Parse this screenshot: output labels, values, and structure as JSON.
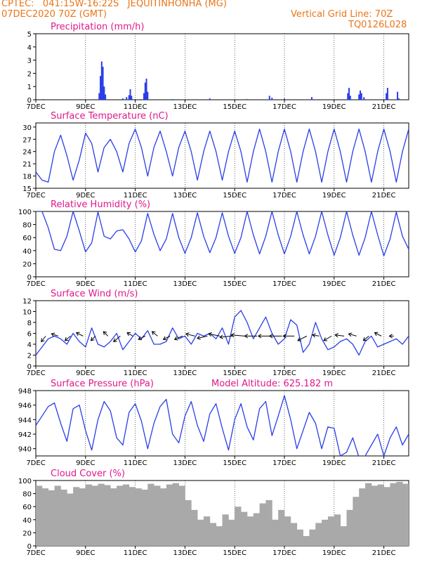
{
  "header": {
    "line1": "CPTEC:   041:15W-16:22S   JEQUITINHONHA (MG)",
    "line2": "07DEC2020 70Z (GMT)",
    "right1": "Vertical Grid Line: 70Z",
    "right2": "TQ0126L028"
  },
  "colors": {
    "header": "#e8761a",
    "title": "#e0188c",
    "series": "#2a3ee8",
    "cloud": "#a9a9a9",
    "wind_arrow": "#000000"
  },
  "x_axis": {
    "ticks": [
      "7DEC",
      "9DEC",
      "11DEC",
      "13DEC",
      "15DEC",
      "17DEC",
      "19DEC",
      "21DEC"
    ],
    "tick_days": [
      0,
      2,
      4,
      6,
      8,
      10,
      12,
      14
    ],
    "range_days": [
      0,
      15
    ]
  },
  "chart_data": [
    {
      "id": "precip",
      "type": "bar",
      "title": "Precipitation (mm/h)",
      "ylim": [
        0,
        5
      ],
      "yticks": [
        0,
        1,
        2,
        3,
        4,
        5
      ],
      "x_days": [
        0.3,
        2.55,
        2.6,
        2.65,
        2.7,
        2.75,
        2.8,
        3.5,
        3.65,
        3.75,
        3.8,
        3.85,
        4.35,
        4.4,
        4.45,
        4.5,
        5.5,
        7.0,
        8.5,
        9.4,
        9.5,
        10.0,
        11.1,
        12.55,
        12.6,
        12.65,
        13.0,
        13.05,
        13.1,
        13.2,
        14.1,
        14.15,
        14.55,
        14.6
      ],
      "values": [
        0.05,
        0.5,
        1.8,
        2.9,
        2.5,
        1.0,
        0.4,
        0.1,
        0.2,
        0.35,
        0.8,
        0.3,
        0.5,
        1.3,
        1.6,
        0.6,
        0.05,
        0.1,
        0.05,
        0.3,
        0.15,
        0.1,
        0.2,
        0.5,
        0.9,
        0.3,
        0.4,
        0.7,
        0.5,
        0.2,
        0.5,
        0.9,
        0.6,
        0.1
      ]
    },
    {
      "id": "temp",
      "type": "line",
      "title": "Surface Temperature (nC)",
      "ylim": [
        15,
        31
      ],
      "yticks": [
        15,
        18,
        21,
        24,
        27,
        30
      ],
      "x_days": [
        0,
        0.25,
        0.5,
        0.75,
        1,
        1.25,
        1.5,
        1.75,
        2,
        2.25,
        2.5,
        2.75,
        3,
        3.25,
        3.5,
        3.75,
        4,
        4.25,
        4.5,
        4.75,
        5,
        5.25,
        5.5,
        5.75,
        6,
        6.25,
        6.5,
        6.75,
        7,
        7.25,
        7.5,
        7.75,
        8,
        8.25,
        8.5,
        8.75,
        9,
        9.25,
        9.5,
        9.75,
        10,
        10.25,
        10.5,
        10.75,
        11,
        11.25,
        11.5,
        11.75,
        12,
        12.25,
        12.5,
        12.75,
        13,
        13.25,
        13.5,
        13.75,
        14,
        14.25,
        14.5,
        14.75,
        15
      ],
      "values": [
        19,
        17,
        16.5,
        24,
        28,
        23,
        17,
        22,
        28.5,
        26,
        19,
        25,
        27,
        24,
        19,
        26,
        29.5,
        25,
        18,
        25,
        29,
        24,
        18,
        25,
        29,
        24,
        17,
        24,
        29,
        24,
        17,
        24,
        29,
        24,
        16.5,
        24,
        29.5,
        24,
        16.5,
        24,
        29.5,
        24,
        16.5,
        24,
        29.5,
        24,
        16.5,
        24,
        29.5,
        24,
        16.5,
        24,
        29.5,
        24,
        16.5,
        24,
        29.5,
        24,
        16.5,
        24,
        29.5
      ]
    },
    {
      "id": "rh",
      "type": "line",
      "title": "Relative Humidity (%)",
      "ylim": [
        0,
        100
      ],
      "yticks": [
        0,
        20,
        40,
        60,
        80,
        100
      ],
      "x_days": [
        0,
        0.25,
        0.5,
        0.75,
        1,
        1.25,
        1.5,
        1.75,
        2,
        2.25,
        2.5,
        2.75,
        3,
        3.25,
        3.5,
        3.75,
        4,
        4.25,
        4.5,
        4.75,
        5,
        5.25,
        5.5,
        5.75,
        6,
        6.25,
        6.5,
        6.75,
        7,
        7.25,
        7.5,
        7.75,
        8,
        8.25,
        8.5,
        8.75,
        9,
        9.25,
        9.5,
        9.75,
        10,
        10.25,
        10.5,
        10.75,
        11,
        11.25,
        11.5,
        11.75,
        12,
        12.25,
        12.5,
        12.75,
        13,
        13.25,
        13.5,
        13.75,
        14,
        14.25,
        14.5,
        14.75,
        15
      ],
      "values": [
        100,
        100,
        75,
        42,
        40,
        62,
        100,
        70,
        38,
        52,
        99,
        62,
        58,
        70,
        72,
        58,
        38,
        55,
        97,
        65,
        40,
        58,
        97,
        60,
        36,
        60,
        98,
        62,
        37,
        60,
        98,
        62,
        36,
        60,
        100,
        64,
        35,
        62,
        100,
        64,
        35,
        62,
        100,
        64,
        35,
        62,
        100,
        64,
        33,
        60,
        100,
        64,
        33,
        60,
        100,
        64,
        32,
        58,
        99,
        62,
        42
      ]
    },
    {
      "id": "wind",
      "type": "line",
      "title": "Surface Wind (m/s)",
      "ylim": [
        0,
        12
      ],
      "yticks": [
        0,
        2,
        4,
        6,
        8,
        10,
        12
      ],
      "x_days": [
        0,
        0.25,
        0.5,
        0.75,
        1,
        1.25,
        1.5,
        1.75,
        2,
        2.25,
        2.5,
        2.75,
        3,
        3.25,
        3.5,
        3.75,
        4,
        4.25,
        4.5,
        4.75,
        5,
        5.25,
        5.5,
        5.75,
        6,
        6.25,
        6.5,
        6.75,
        7,
        7.25,
        7.5,
        7.75,
        8,
        8.25,
        8.5,
        8.75,
        9,
        9.25,
        9.5,
        9.75,
        10,
        10.25,
        10.5,
        10.75,
        11,
        11.25,
        11.5,
        11.75,
        12,
        12.25,
        12.5,
        12.75,
        13,
        13.25,
        13.5,
        13.75,
        14,
        14.25,
        14.5,
        14.75,
        15
      ],
      "values": [
        2,
        3.5,
        5,
        5.5,
        5,
        4,
        6,
        4.5,
        3.5,
        7,
        4,
        3.5,
        4.5,
        6,
        3,
        4.5,
        6,
        5,
        6.5,
        4,
        4,
        4.5,
        7,
        5,
        5.5,
        4,
        6,
        5.5,
        6,
        5,
        7,
        4,
        9,
        10.2,
        8,
        5,
        7,
        9,
        6,
        4,
        5,
        8.5,
        7.5,
        2.5,
        4,
        8,
        5,
        3,
        3.5,
        4.5,
        5,
        4,
        2,
        4.5,
        5.5,
        3.5,
        4,
        4.5,
        5,
        4,
        5.5
      ]
    },
    {
      "id": "pressure",
      "type": "line",
      "title": "Surface Pressure (hPa)",
      "annotation": "Model Altitude: 625.182 m",
      "ylim": [
        939,
        948
      ],
      "yticks": [
        940,
        942,
        944,
        946,
        948
      ],
      "x_days": [
        0,
        0.25,
        0.5,
        0.75,
        1,
        1.25,
        1.5,
        1.75,
        2,
        2.25,
        2.5,
        2.75,
        3,
        3.25,
        3.5,
        3.75,
        4,
        4.25,
        4.5,
        4.75,
        5,
        5.25,
        5.5,
        5.75,
        6,
        6.25,
        6.5,
        6.75,
        7,
        7.25,
        7.5,
        7.75,
        8,
        8.25,
        8.5,
        8.75,
        9,
        9.25,
        9.5,
        9.75,
        10,
        10.25,
        10.5,
        10.75,
        11,
        11.25,
        11.5,
        11.75,
        12,
        12.25,
        12.5,
        12.75,
        13,
        13.25,
        13.5,
        13.75,
        14,
        14.25,
        14.5,
        14.75,
        15
      ],
      "values": [
        943.2,
        944.5,
        945.8,
        946.3,
        943.5,
        941.0,
        945.5,
        946.0,
        942.5,
        939.8,
        944.0,
        946.5,
        945.2,
        941.5,
        940.5,
        945.0,
        946.2,
        943.8,
        940.0,
        943.5,
        945.8,
        946.8,
        942.0,
        940.8,
        944.5,
        946.5,
        943.2,
        941.0,
        944.8,
        946.2,
        942.8,
        939.8,
        944.0,
        946.2,
        943.0,
        941.2,
        945.5,
        946.5,
        941.8,
        944.5,
        947.3,
        944.0,
        940.0,
        942.5,
        945.0,
        943.5,
        940.0,
        943.0,
        942.8,
        939.0,
        939.5,
        941.5,
        938.8,
        939.0,
        940.5,
        942.0,
        939.0,
        941.5,
        943.0,
        940.5,
        942.0
      ]
    },
    {
      "id": "cloud",
      "type": "bar",
      "title": "Cloud Cover (%)",
      "ylim": [
        0,
        100
      ],
      "yticks": [
        0,
        20,
        40,
        60,
        80,
        100
      ],
      "x_days": [
        0,
        0.25,
        0.5,
        0.75,
        1,
        1.25,
        1.5,
        1.75,
        2,
        2.25,
        2.5,
        2.75,
        3,
        3.25,
        3.5,
        3.75,
        4,
        4.25,
        4.5,
        4.75,
        5,
        5.25,
        5.5,
        5.75,
        6,
        6.25,
        6.5,
        6.75,
        7,
        7.25,
        7.5,
        7.75,
        8,
        8.25,
        8.5,
        8.75,
        9,
        9.25,
        9.5,
        9.75,
        10,
        10.25,
        10.5,
        10.75,
        11,
        11.25,
        11.5,
        11.75,
        12,
        12.25,
        12.5,
        12.75,
        13,
        13.25,
        13.5,
        13.75,
        14,
        14.25,
        14.5,
        14.75,
        15
      ],
      "values": [
        92,
        88,
        85,
        92,
        86,
        80,
        90,
        88,
        94,
        92,
        95,
        93,
        88,
        92,
        94,
        90,
        88,
        86,
        95,
        92,
        88,
        94,
        96,
        92,
        70,
        55,
        40,
        45,
        35,
        30,
        48,
        40,
        60,
        52,
        45,
        50,
        65,
        70,
        40,
        55,
        45,
        35,
        25,
        15,
        25,
        35,
        40,
        45,
        48,
        30,
        55,
        75,
        88,
        96,
        92,
        94,
        90,
        96,
        98,
        95,
        92
      ]
    }
  ],
  "wind_vectors": {
    "x_days": [
      0.4,
      0.9,
      1.4,
      1.9,
      2.4,
      2.9,
      3.4,
      3.9,
      4.4,
      4.9,
      5.4,
      5.9,
      6.4,
      6.9,
      7.4,
      7.9,
      8.4,
      8.9,
      9.4,
      9.9,
      10.4,
      10.9,
      11.4,
      11.9,
      12.4,
      12.9,
      13.4,
      13.9,
      14.4
    ],
    "u": [
      -2,
      -3,
      -2.5,
      -3,
      -2,
      -2,
      -3,
      -2.5,
      -3,
      -2.5,
      -3,
      -3.5,
      -4,
      -4.5,
      -5,
      -5.5,
      -6,
      -5.5,
      -5,
      -5.5,
      -5,
      -4,
      -3,
      -3.5,
      -4,
      -3.5,
      -2.5,
      -3,
      -2
    ],
    "v": [
      -2.5,
      1,
      -2,
      1.5,
      -2,
      2,
      -2.5,
      1.5,
      -1.5,
      2,
      -1.5,
      -1.5,
      1,
      -1,
      1,
      -0.5,
      0.5,
      0,
      0,
      0,
      0,
      -2,
      0.5,
      -2,
      0.5,
      1,
      -2,
      1.5,
      0
    ]
  }
}
